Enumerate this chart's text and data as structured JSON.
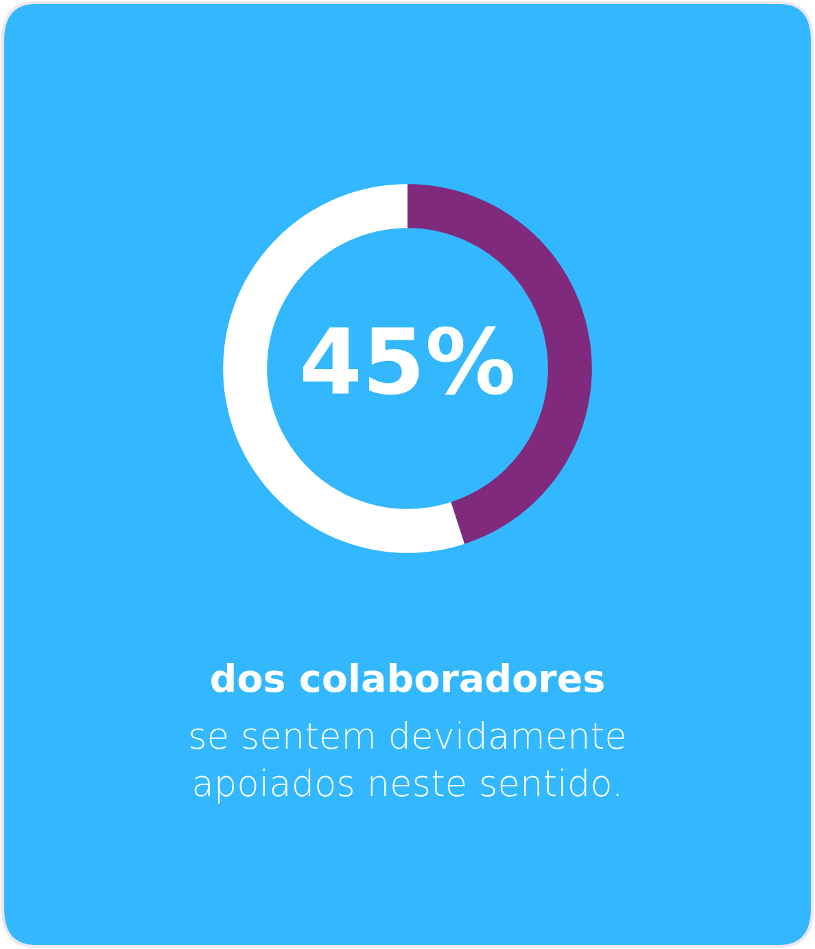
{
  "chart_data": {
    "type": "donut",
    "categories": [
      null,
      null
    ],
    "values": [
      45,
      55
    ],
    "colors": [
      "#7f2a7d",
      "#ffffff"
    ],
    "value_labels": [
      "45%",
      null
    ],
    "annotations": [
      "dos colaboradores",
      "se sentem devidamente\napoiados neste sentido."
    ]
  }
}
